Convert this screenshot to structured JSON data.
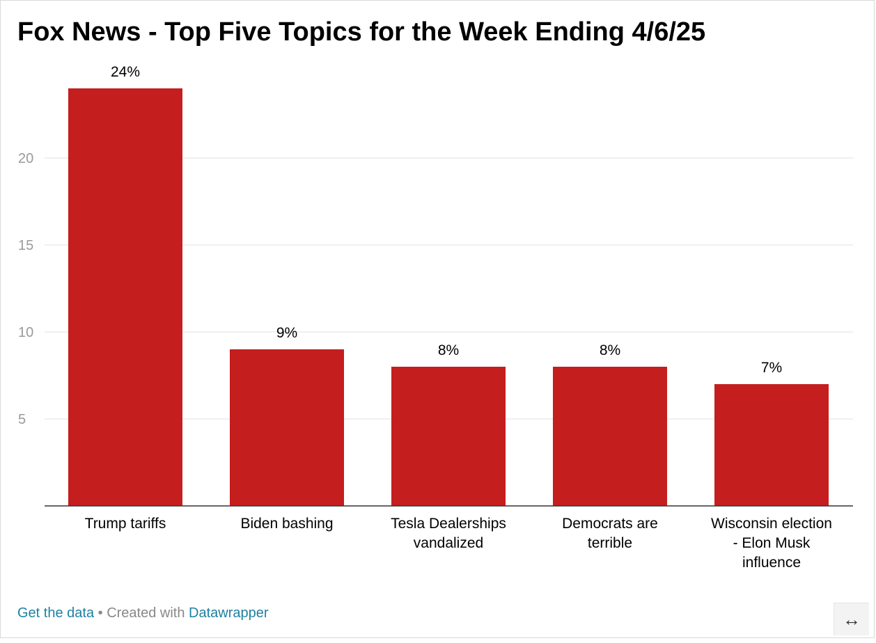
{
  "title": "Fox News - Top Five Topics for the Week Ending 4/6/25",
  "colors": {
    "bar": "#c41e1e",
    "grid": "#e0e0e0",
    "axis": "#333333",
    "tick_text": "#9a9a9a",
    "link": "#1d81a2"
  },
  "chart_data": {
    "type": "bar",
    "title": "Fox News - Top Five Topics for the Week Ending 4/6/25",
    "categories": [
      [
        "Trump tariffs"
      ],
      [
        "Biden bashing"
      ],
      [
        "Tesla Dealerships",
        "vandalized"
      ],
      [
        "Democrats are",
        "terrible"
      ],
      [
        "Wisconsin election",
        "- Elon Musk",
        "influence"
      ]
    ],
    "values": [
      24,
      9,
      8,
      8,
      7
    ],
    "value_labels": [
      "24%",
      "9%",
      "8%",
      "8%",
      "7%"
    ],
    "y_ticks": [
      5,
      10,
      15,
      20
    ],
    "ylim": [
      0,
      24
    ],
    "xlabel": "",
    "ylabel": "",
    "grid": true,
    "legend": "none"
  },
  "footer": {
    "get_data": "Get the data",
    "separator": " • Created with ",
    "tool": "Datawrapper"
  },
  "resize_icon": "↔"
}
